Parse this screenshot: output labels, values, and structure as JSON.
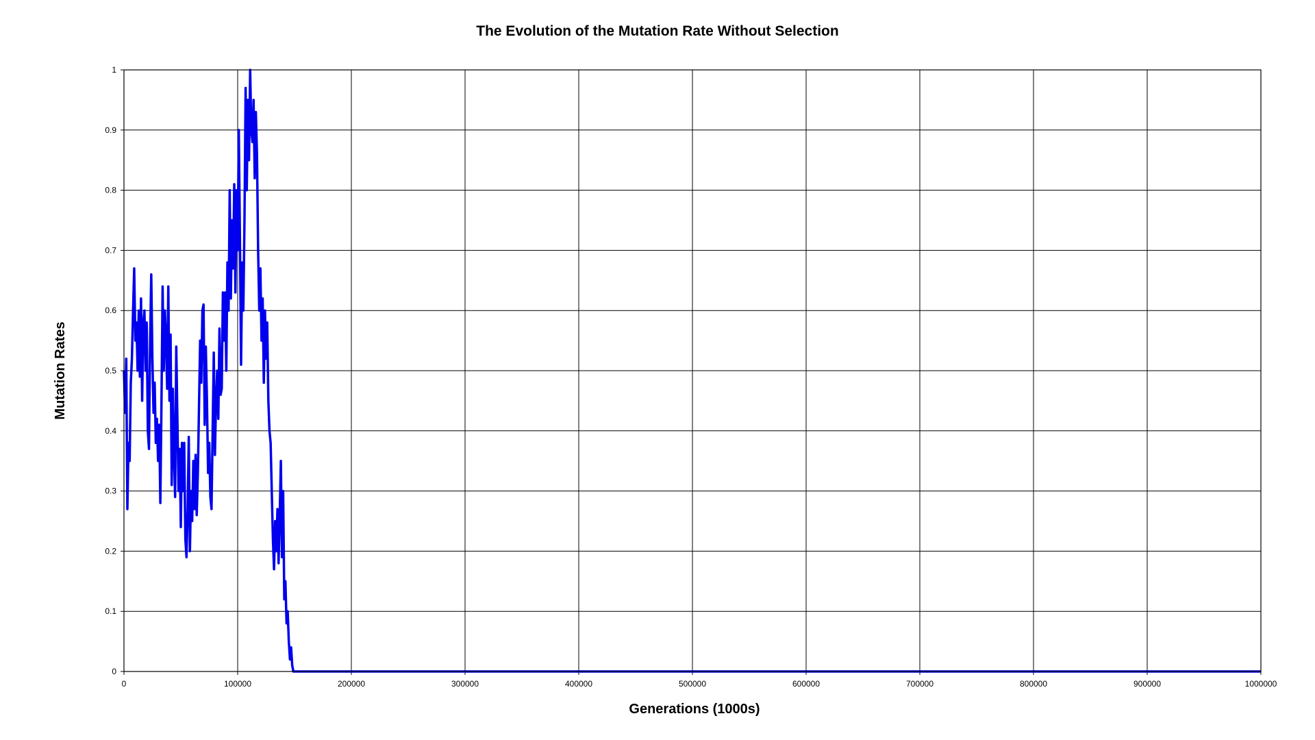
{
  "chart_data": {
    "type": "line",
    "title": "The Evolution of the Mutation Rate Without Selection",
    "xlabel": "Generations (1000s)",
    "ylabel": "Mutation Rates",
    "xlim": [
      0,
      1000000
    ],
    "ylim": [
      0,
      1
    ],
    "grid": true,
    "legend": "none",
    "line_color": "#0000ee",
    "x_ticks": [
      "0",
      "100000",
      "200000",
      "300000",
      "400000",
      "500000",
      "600000",
      "700000",
      "800000",
      "900000",
      "1000000"
    ],
    "y_ticks": [
      "0",
      "0.1",
      "0.2",
      "0.3",
      "0.4",
      "0.5",
      "0.6",
      "0.7",
      "0.8",
      "0.9",
      "1"
    ],
    "series": [
      {
        "x": [
          0,
          1000,
          2000,
          3000,
          4000,
          5000,
          6000,
          7000,
          8000,
          9000,
          10000,
          11000,
          12000,
          13000,
          14000,
          15000,
          16000,
          17000,
          18000,
          19000,
          20000,
          21000,
          22000,
          23000,
          24000,
          25000,
          26000,
          27000,
          28000,
          29000,
          30000,
          31000,
          32000,
          33000,
          34000,
          35000,
          36000,
          37000,
          38000,
          39000,
          40000,
          41000,
          42000,
          43000,
          44000,
          45000,
          46000,
          47000,
          48000,
          49000,
          50000,
          51000,
          52000,
          53000,
          54000,
          55000,
          56000,
          57000,
          58000,
          59000,
          60000,
          61000,
          62000,
          63000,
          64000,
          65000,
          66000,
          67000,
          68000,
          69000,
          70000,
          71000,
          72000,
          73000,
          74000,
          75000,
          76000,
          77000,
          78000,
          79000,
          80000,
          81000,
          82000,
          83000,
          84000,
          85000,
          86000,
          87000,
          88000,
          89000,
          90000,
          91000,
          92000,
          93000,
          94000,
          95000,
          96000,
          97000,
          98000,
          99000,
          100000,
          101000,
          102000,
          103000,
          104000,
          105000,
          106000,
          107000,
          108000,
          109000,
          110000,
          111000,
          112000,
          113000,
          114000,
          115000,
          116000,
          117000,
          118000,
          119000,
          120000,
          121000,
          122000,
          123000,
          124000,
          125000,
          126000,
          127000,
          128000,
          129000,
          130000,
          131000,
          132000,
          133000,
          134000,
          135000,
          136000,
          137000,
          138000,
          139000,
          140000,
          141000,
          142000,
          143000,
          144000,
          145000,
          146000,
          147000,
          148000,
          149000,
          150000,
          151000,
          152000,
          153000,
          154000,
          155000,
          1000000
        ],
        "y": [
          0.5,
          0.43,
          0.52,
          0.27,
          0.38,
          0.35,
          0.48,
          0.52,
          0.6,
          0.67,
          0.55,
          0.58,
          0.5,
          0.6,
          0.49,
          0.62,
          0.45,
          0.58,
          0.6,
          0.5,
          0.58,
          0.4,
          0.37,
          0.55,
          0.66,
          0.52,
          0.43,
          0.48,
          0.38,
          0.42,
          0.35,
          0.41,
          0.28,
          0.45,
          0.64,
          0.5,
          0.6,
          0.55,
          0.47,
          0.64,
          0.45,
          0.56,
          0.31,
          0.47,
          0.36,
          0.29,
          0.54,
          0.42,
          0.3,
          0.37,
          0.24,
          0.38,
          0.3,
          0.38,
          0.22,
          0.19,
          0.27,
          0.39,
          0.2,
          0.3,
          0.25,
          0.35,
          0.27,
          0.36,
          0.26,
          0.33,
          0.44,
          0.55,
          0.48,
          0.6,
          0.61,
          0.41,
          0.54,
          0.45,
          0.33,
          0.38,
          0.29,
          0.27,
          0.4,
          0.53,
          0.36,
          0.45,
          0.5,
          0.42,
          0.57,
          0.46,
          0.47,
          0.63,
          0.55,
          0.63,
          0.5,
          0.68,
          0.6,
          0.8,
          0.62,
          0.75,
          0.67,
          0.81,
          0.63,
          0.8,
          0.7,
          0.9,
          0.72,
          0.51,
          0.68,
          0.6,
          0.75,
          0.97,
          0.8,
          0.95,
          0.85,
          1.0,
          0.9,
          0.88,
          0.95,
          0.82,
          0.93,
          0.86,
          0.7,
          0.6,
          0.67,
          0.55,
          0.62,
          0.48,
          0.6,
          0.52,
          0.58,
          0.45,
          0.4,
          0.38,
          0.3,
          0.22,
          0.17,
          0.25,
          0.2,
          0.27,
          0.18,
          0.26,
          0.35,
          0.19,
          0.3,
          0.12,
          0.15,
          0.08,
          0.1,
          0.05,
          0.02,
          0.04,
          0.01,
          0.0,
          0.0,
          0.0,
          0.0,
          0.0,
          0.0,
          0.0,
          0.0
        ]
      }
    ]
  }
}
